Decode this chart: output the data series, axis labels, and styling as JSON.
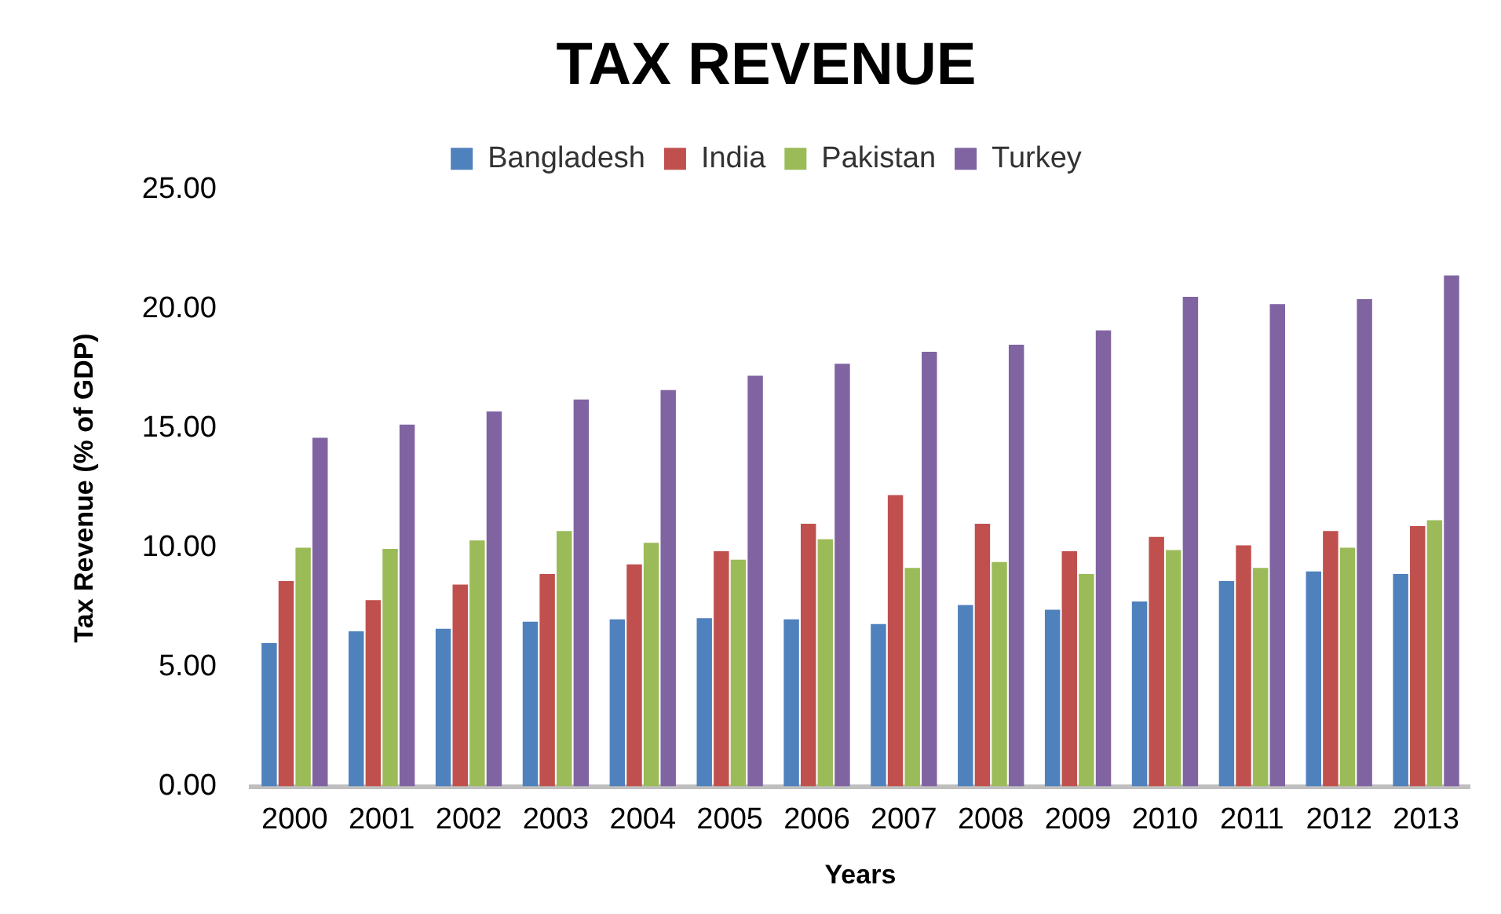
{
  "chart_data": {
    "type": "bar",
    "title": "TAX REVENUE",
    "xlabel": "Years",
    "ylabel": "Tax Revenue (% of GDP)",
    "categories": [
      "2000",
      "2001",
      "2002",
      "2003",
      "2004",
      "2005",
      "2006",
      "2007",
      "2008",
      "2009",
      "2010",
      "2011",
      "2012",
      "2013"
    ],
    "series": [
      {
        "name": "Bangladesh",
        "color": "#4f81bd",
        "values": [
          6.0,
          6.5,
          6.6,
          6.9,
          7.0,
          7.05,
          7.0,
          6.8,
          7.6,
          7.4,
          7.75,
          8.6,
          9.0,
          8.9
        ]
      },
      {
        "name": "India",
        "color": "#c0504d",
        "values": [
          8.6,
          7.8,
          8.45,
          8.9,
          9.3,
          9.85,
          11.0,
          12.2,
          11.0,
          9.85,
          10.45,
          10.1,
          10.7,
          10.9
        ]
      },
      {
        "name": "Pakistan",
        "color": "#9bbb59",
        "values": [
          10.0,
          9.95,
          10.3,
          10.7,
          10.2,
          9.5,
          10.35,
          9.15,
          9.4,
          8.9,
          9.9,
          9.15,
          10.0,
          11.15
        ]
      },
      {
        "name": "Turkey",
        "color": "#8064a2",
        "values": [
          14.6,
          15.15,
          15.7,
          16.2,
          16.6,
          17.2,
          17.7,
          18.2,
          18.5,
          19.1,
          20.5,
          20.2,
          20.4,
          21.4
        ]
      }
    ],
    "ylim": [
      0,
      25
    ],
    "yticks": [
      {
        "value": 0,
        "label": "0.00"
      },
      {
        "value": 5,
        "label": "5.00"
      },
      {
        "value": 10,
        "label": "10.00"
      },
      {
        "value": 15,
        "label": "15.00"
      },
      {
        "value": 20,
        "label": "20.00"
      },
      {
        "value": 25,
        "label": "25.00"
      }
    ],
    "grid": false,
    "legend": "top"
  }
}
